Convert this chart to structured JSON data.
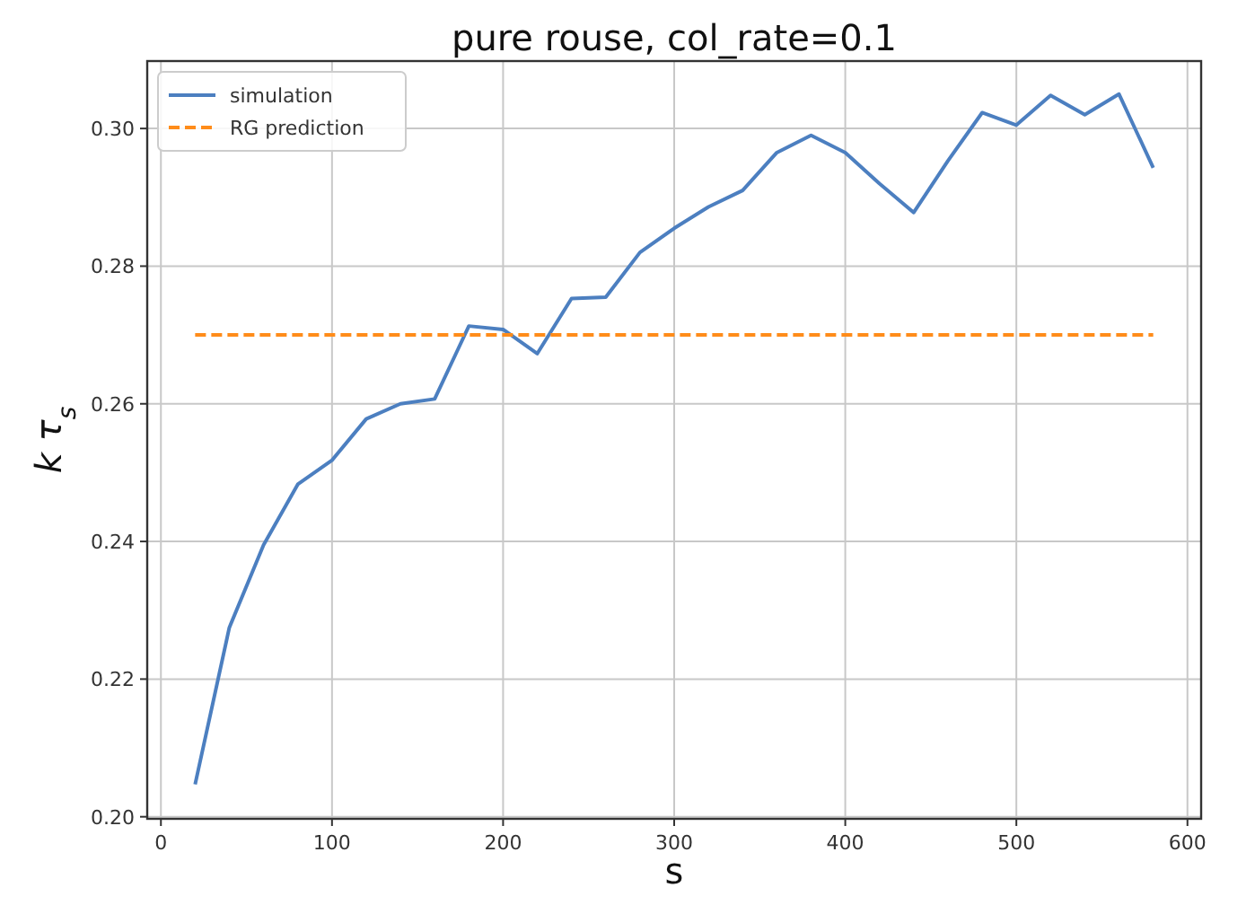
{
  "chart_data": {
    "type": "line",
    "title": "pure rouse, col_rate=0.1",
    "xlabel": "s",
    "ylabel": "k τ$_{s}$",
    "x": [
      20,
      40,
      60,
      80,
      100,
      120,
      140,
      160,
      180,
      200,
      220,
      240,
      260,
      280,
      300,
      320,
      340,
      360,
      380,
      400,
      420,
      440,
      460,
      480,
      500,
      520,
      540,
      560,
      580
    ],
    "series": [
      {
        "name": "simulation",
        "color": "#4c7fc0",
        "line_style": "solid",
        "values": [
          0.2047,
          0.2275,
          0.2395,
          0.2483,
          0.2518,
          0.2578,
          0.26,
          0.2607,
          0.2713,
          0.2708,
          0.2673,
          0.2753,
          0.2755,
          0.282,
          0.2855,
          0.2886,
          0.291,
          0.2965,
          0.299,
          0.2965,
          0.292,
          0.2878,
          0.2953,
          0.3023,
          0.3005,
          0.3048,
          0.302,
          0.305,
          0.2943
        ]
      },
      {
        "name": "RG prediction",
        "color": "#ff8c1a",
        "line_style": "dashed",
        "x": [
          20,
          580
        ],
        "values": [
          0.27,
          0.27
        ]
      }
    ],
    "xlim": [
      -8,
      608
    ],
    "xticks": [
      0,
      100,
      200,
      300,
      400,
      500,
      600
    ],
    "ylim": [
      0.1997,
      0.3098
    ],
    "yticks": [
      {
        "value": 0.2,
        "label": "0.20"
      },
      {
        "value": 0.22,
        "label": "0.22"
      },
      {
        "value": 0.24,
        "label": "0.24"
      },
      {
        "value": 0.26,
        "label": "0.26"
      },
      {
        "value": 0.28,
        "label": "0.28"
      },
      {
        "value": 0.3,
        "label": "0.30"
      }
    ],
    "grid": true,
    "legend": "top left",
    "marker": "none"
  }
}
